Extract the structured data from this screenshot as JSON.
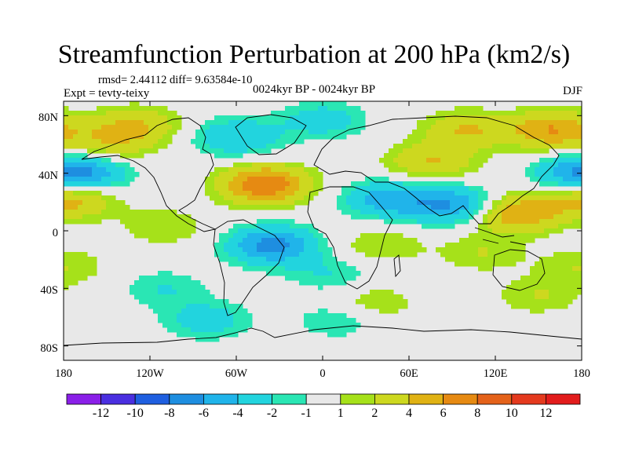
{
  "title": "Streamfunction Perturbation at 200 hPa (km2/s)",
  "subtitle_stats": "rmsd= 2.44112 diff= 9.63584e-10",
  "experiment": "Expt = tevty-teixy",
  "period": "0024kyr BP - 0024kyr BP",
  "season": "DJF",
  "map": {
    "x_ticks": [
      "180",
      "120W",
      "60W",
      "0",
      "60E",
      "120E",
      "180"
    ],
    "y_ticks": [
      "80N",
      "40N",
      "0",
      "40S",
      "80S"
    ]
  },
  "colorbar": {
    "labels": [
      "-12",
      "-10",
      "-8",
      "-6",
      "-4",
      "-2",
      "-1",
      "1",
      "2",
      "4",
      "6",
      "8",
      "10",
      "12"
    ],
    "colors": [
      "#8a1fe8",
      "#4a2fe0",
      "#1f5fe0",
      "#1e8ee0",
      "#20b4ea",
      "#22d4de",
      "#2ae6b4",
      "#e8e8e8",
      "#a6e11a",
      "#cdd81f",
      "#e0b214",
      "#e68a12",
      "#e4621a",
      "#e43a1e",
      "#e21c1c"
    ]
  },
  "chart_data": {
    "type": "heatmap",
    "title": "Streamfunction Perturbation at 200 hPa (km2/s)",
    "xlabel": "",
    "ylabel": "",
    "x_range": [
      -180,
      180
    ],
    "y_range": [
      -90,
      90
    ],
    "levels": [
      -12,
      -10,
      -8,
      -6,
      -4,
      -2,
      -1,
      1,
      2,
      4,
      6,
      8,
      10,
      12
    ],
    "anomaly_centers": [
      {
        "lon": -130,
        "lat": 73,
        "value": 4
      },
      {
        "lon": -60,
        "lat": 65,
        "value": -4
      },
      {
        "lon": 0,
        "lat": 77,
        "value": -3
      },
      {
        "lon": 100,
        "lat": 70,
        "value": 4
      },
      {
        "lon": 160,
        "lat": 70,
        "value": 6
      },
      {
        "lon": -165,
        "lat": 40,
        "value": -5
      },
      {
        "lon": -150,
        "lat": 60,
        "value": 3
      },
      {
        "lon": -40,
        "lat": 32,
        "value": 8
      },
      {
        "lon": 75,
        "lat": 48,
        "value": 4
      },
      {
        "lon": -175,
        "lat": 22,
        "value": 5
      },
      {
        "lon": 45,
        "lat": 22,
        "value": -5
      },
      {
        "lon": 90,
        "lat": 18,
        "value": -6
      },
      {
        "lon": 135,
        "lat": 12,
        "value": 6
      },
      {
        "lon": 175,
        "lat": 40,
        "value": -4
      },
      {
        "lon": -110,
        "lat": 3,
        "value": 2
      },
      {
        "lon": -35,
        "lat": -10,
        "value": -7
      },
      {
        "lon": 40,
        "lat": -10,
        "value": 2
      },
      {
        "lon": 110,
        "lat": -15,
        "value": 2
      },
      {
        "lon": -180,
        "lat": -25,
        "value": 2
      },
      {
        "lon": -110,
        "lat": -40,
        "value": -2
      },
      {
        "lon": 5,
        "lat": -30,
        "value": -2
      },
      {
        "lon": 150,
        "lat": -45,
        "value": 2
      },
      {
        "lon": 35,
        "lat": -50,
        "value": 2
      },
      {
        "lon": -80,
        "lat": -62,
        "value": -3
      },
      {
        "lon": 10,
        "lat": -62,
        "value": -2
      }
    ]
  }
}
